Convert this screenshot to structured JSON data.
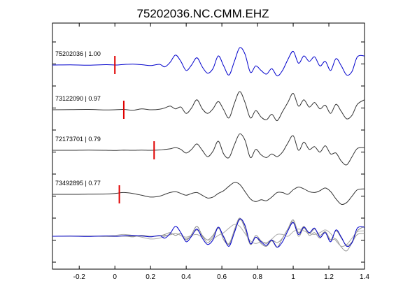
{
  "chart_data": {
    "type": "line",
    "title": "75202036.NC.CMM.EHZ",
    "xlabel": "",
    "ylabel": "",
    "xlim": [
      -0.35,
      1.4
    ],
    "x_ticks": [
      -0.2,
      0,
      0.2,
      0.4,
      0.6,
      0.8,
      1,
      1.2,
      1.4
    ],
    "x_tick_labels": [
      "-0.2",
      "0",
      "0.2",
      "0.4",
      "0.6",
      "0.8",
      "1",
      "1.2",
      "1.4"
    ],
    "grid": false,
    "series": [
      {
        "name": "75202036 | 1.00",
        "color": "#0000cc",
        "pick_time": 0.0,
        "x": [
          -0.35,
          -0.25,
          -0.15,
          -0.05,
          0.0,
          0.05,
          0.1,
          0.15,
          0.2,
          0.25,
          0.28,
          0.31,
          0.34,
          0.37,
          0.4,
          0.43,
          0.46,
          0.49,
          0.52,
          0.55,
          0.58,
          0.61,
          0.64,
          0.67,
          0.7,
          0.73,
          0.76,
          0.79,
          0.82,
          0.85,
          0.88,
          0.91,
          0.94,
          0.97,
          1.0,
          1.03,
          1.06,
          1.09,
          1.12,
          1.15,
          1.18,
          1.21,
          1.24,
          1.27,
          1.3,
          1.33,
          1.36,
          1.4
        ],
        "y": [
          0.0,
          0.01,
          -0.01,
          0.02,
          0.0,
          0.03,
          0.05,
          0.02,
          -0.03,
          0.04,
          -0.1,
          0.15,
          0.55,
          0.2,
          -0.3,
          0.0,
          0.4,
          -0.1,
          -0.45,
          -0.2,
          0.5,
          -0.05,
          -0.55,
          0.2,
          0.95,
          0.6,
          -0.4,
          -0.05,
          -0.3,
          -0.5,
          -0.2,
          -0.6,
          -0.3,
          0.3,
          0.75,
          0.1,
          0.5,
          0.2,
          0.45,
          -0.05,
          0.2,
          -0.3,
          0.35,
          -0.05,
          -0.55,
          -0.35,
          0.45,
          0.5
        ]
      },
      {
        "name": "73122090 | 0.97",
        "color": "#333333",
        "pick_time": 0.05,
        "x": [
          -0.35,
          -0.25,
          -0.15,
          -0.05,
          0.0,
          0.05,
          0.1,
          0.15,
          0.2,
          0.25,
          0.28,
          0.31,
          0.34,
          0.37,
          0.4,
          0.43,
          0.46,
          0.49,
          0.52,
          0.55,
          0.58,
          0.61,
          0.64,
          0.67,
          0.7,
          0.73,
          0.76,
          0.79,
          0.82,
          0.85,
          0.88,
          0.91,
          0.94,
          0.97,
          1.0,
          1.03,
          1.06,
          1.09,
          1.12,
          1.15,
          1.18,
          1.21,
          1.24,
          1.27,
          1.3,
          1.33,
          1.36,
          1.4
        ],
        "y": [
          0.0,
          0.01,
          0.02,
          -0.01,
          0.0,
          0.02,
          -0.03,
          0.05,
          0.0,
          0.03,
          0.1,
          0.2,
          0.05,
          0.15,
          -0.2,
          0.1,
          0.55,
          0.05,
          -0.2,
          0.05,
          0.45,
          0.0,
          -0.45,
          0.35,
          1.0,
          0.4,
          -0.45,
          -0.05,
          -0.4,
          -0.55,
          -0.25,
          -0.6,
          -0.1,
          0.4,
          0.9,
          0.2,
          0.55,
          0.15,
          0.4,
          0.05,
          0.25,
          -0.2,
          0.3,
          -0.1,
          -0.5,
          -0.3,
          0.3,
          0.55
        ]
      },
      {
        "name": "72173701 | 0.79",
        "color": "#333333",
        "pick_time": 0.22,
        "x": [
          -0.35,
          -0.25,
          -0.15,
          -0.05,
          0.0,
          0.05,
          0.1,
          0.15,
          0.2,
          0.25,
          0.28,
          0.31,
          0.34,
          0.37,
          0.4,
          0.43,
          0.46,
          0.49,
          0.52,
          0.55,
          0.58,
          0.61,
          0.64,
          0.67,
          0.7,
          0.73,
          0.76,
          0.79,
          0.82,
          0.85,
          0.88,
          0.91,
          0.94,
          0.97,
          1.0,
          1.03,
          1.06,
          1.09,
          1.12,
          1.15,
          1.18,
          1.21,
          1.24,
          1.27,
          1.3,
          1.33,
          1.36,
          1.4
        ],
        "y": [
          0.0,
          0.0,
          0.01,
          0.0,
          -0.01,
          0.01,
          0.0,
          0.01,
          0.0,
          0.02,
          0.05,
          0.08,
          0.15,
          0.05,
          -0.15,
          0.05,
          0.35,
          0.0,
          -0.35,
          -0.05,
          0.5,
          -0.2,
          -0.4,
          0.3,
          0.9,
          0.55,
          -0.4,
          0.05,
          -0.25,
          -0.4,
          -0.2,
          -0.35,
          -0.1,
          0.4,
          0.8,
          0.0,
          0.45,
          0.05,
          0.2,
          -0.1,
          0.25,
          -0.2,
          -0.15,
          -0.6,
          -0.8,
          -0.35,
          0.1,
          0.15
        ]
      },
      {
        "name": "73492895 | 0.77",
        "color": "#333333",
        "pick_time": 0.025,
        "x": [
          -0.35,
          -0.25,
          -0.15,
          -0.05,
          0.0,
          0.05,
          0.1,
          0.15,
          0.2,
          0.25,
          0.28,
          0.31,
          0.34,
          0.37,
          0.4,
          0.43,
          0.46,
          0.49,
          0.52,
          0.55,
          0.58,
          0.61,
          0.64,
          0.67,
          0.7,
          0.73,
          0.76,
          0.79,
          0.82,
          0.85,
          0.88,
          0.91,
          0.94,
          0.97,
          1.0,
          1.03,
          1.06,
          1.09,
          1.12,
          1.15,
          1.18,
          1.21,
          1.24,
          1.27,
          1.3,
          1.33,
          1.36,
          1.4
        ],
        "y": [
          0.0,
          0.0,
          0.01,
          0.02,
          0.05,
          0.1,
          0.05,
          -0.05,
          -0.15,
          -0.1,
          0.0,
          0.1,
          0.15,
          0.05,
          -0.05,
          0.05,
          0.1,
          -0.05,
          -0.2,
          -0.15,
          0.05,
          0.2,
          0.45,
          0.65,
          0.55,
          0.15,
          -0.25,
          -0.4,
          -0.3,
          -0.35,
          -0.15,
          0.1,
          0.1,
          0.0,
          0.25,
          0.4,
          0.3,
          0.15,
          0.1,
          0.2,
          0.35,
          0.15,
          -0.25,
          -0.55,
          -0.45,
          -0.1,
          0.25,
          0.3
        ]
      },
      {
        "name": "",
        "color": "#0000cc",
        "overlay": true,
        "x": [
          -0.35,
          -0.25,
          -0.15,
          -0.05,
          0.0,
          0.05,
          0.1,
          0.15,
          0.2,
          0.25,
          0.28,
          0.31,
          0.34,
          0.37,
          0.4,
          0.43,
          0.46,
          0.49,
          0.52,
          0.55,
          0.58,
          0.61,
          0.64,
          0.67,
          0.7,
          0.73,
          0.76,
          0.79,
          0.82,
          0.85,
          0.88,
          0.91,
          0.94,
          0.97,
          1.0,
          1.03,
          1.06,
          1.09,
          1.12,
          1.15,
          1.18,
          1.21,
          1.24,
          1.27,
          1.3,
          1.33,
          1.36,
          1.4
        ],
        "y": [
          0.0,
          0.01,
          -0.01,
          0.02,
          0.0,
          0.03,
          0.05,
          0.02,
          -0.03,
          0.04,
          -0.1,
          0.15,
          0.55,
          0.2,
          -0.3,
          0.0,
          0.4,
          -0.1,
          -0.45,
          -0.2,
          0.5,
          -0.05,
          -0.55,
          0.2,
          0.95,
          0.6,
          -0.4,
          -0.05,
          -0.3,
          -0.5,
          -0.2,
          -0.6,
          -0.3,
          0.3,
          0.75,
          0.1,
          0.5,
          0.2,
          0.45,
          -0.05,
          0.2,
          -0.3,
          0.35,
          -0.05,
          -0.55,
          -0.35,
          0.45,
          0.5
        ]
      },
      {
        "name": "",
        "color": "#888888",
        "overlay": true,
        "x": [
          -0.35,
          -0.25,
          -0.15,
          -0.05,
          0.0,
          0.05,
          0.1,
          0.15,
          0.2,
          0.25,
          0.28,
          0.31,
          0.34,
          0.37,
          0.4,
          0.43,
          0.46,
          0.49,
          0.52,
          0.55,
          0.58,
          0.61,
          0.64,
          0.67,
          0.7,
          0.73,
          0.76,
          0.79,
          0.82,
          0.85,
          0.88,
          0.91,
          0.94,
          0.97,
          1.0,
          1.03,
          1.06,
          1.09,
          1.12,
          1.15,
          1.18,
          1.21,
          1.24,
          1.27,
          1.3,
          1.33,
          1.36,
          1.4
        ],
        "y": [
          0.0,
          0.01,
          0.02,
          -0.01,
          0.0,
          0.02,
          -0.03,
          0.05,
          0.0,
          0.03,
          0.1,
          0.2,
          0.05,
          0.15,
          -0.2,
          0.1,
          0.55,
          0.05,
          -0.2,
          0.05,
          0.45,
          0.0,
          -0.45,
          0.35,
          1.0,
          0.4,
          -0.45,
          -0.05,
          -0.4,
          -0.55,
          -0.25,
          -0.6,
          -0.1,
          0.4,
          0.9,
          0.2,
          0.55,
          0.15,
          0.4,
          0.05,
          0.25,
          -0.2,
          0.3,
          -0.1,
          -0.5,
          -0.3,
          0.3,
          0.55
        ]
      },
      {
        "name": "",
        "color": "#999999",
        "overlay": true,
        "x": [
          -0.35,
          -0.25,
          -0.15,
          -0.05,
          0.0,
          0.05,
          0.1,
          0.15,
          0.2,
          0.25,
          0.28,
          0.31,
          0.34,
          0.37,
          0.4,
          0.43,
          0.46,
          0.49,
          0.52,
          0.55,
          0.58,
          0.61,
          0.64,
          0.67,
          0.7,
          0.73,
          0.76,
          0.79,
          0.82,
          0.85,
          0.88,
          0.91,
          0.94,
          0.97,
          1.0,
          1.03,
          1.06,
          1.09,
          1.12,
          1.15,
          1.18,
          1.21,
          1.24,
          1.27,
          1.3,
          1.33,
          1.36,
          1.4
        ],
        "y": [
          0.0,
          0.0,
          0.01,
          0.0,
          -0.01,
          0.01,
          0.0,
          0.01,
          0.0,
          0.02,
          0.05,
          0.08,
          0.15,
          0.05,
          -0.15,
          0.05,
          0.35,
          0.0,
          -0.35,
          -0.05,
          0.5,
          -0.2,
          -0.4,
          0.3,
          0.9,
          0.55,
          -0.4,
          0.05,
          -0.25,
          -0.4,
          -0.2,
          -0.35,
          -0.1,
          0.4,
          0.8,
          0.0,
          0.45,
          0.05,
          0.2,
          -0.1,
          0.25,
          -0.2,
          -0.15,
          -0.6,
          -0.8,
          -0.35,
          0.1,
          0.15
        ]
      },
      {
        "name": "",
        "color": "#aaaaaa",
        "overlay": true,
        "x": [
          -0.35,
          -0.25,
          -0.15,
          -0.05,
          0.0,
          0.05,
          0.1,
          0.15,
          0.2,
          0.25,
          0.28,
          0.31,
          0.34,
          0.37,
          0.4,
          0.43,
          0.46,
          0.49,
          0.52,
          0.55,
          0.58,
          0.61,
          0.64,
          0.67,
          0.7,
          0.73,
          0.76,
          0.79,
          0.82,
          0.85,
          0.88,
          0.91,
          0.94,
          0.97,
          1.0,
          1.03,
          1.06,
          1.09,
          1.12,
          1.15,
          1.18,
          1.21,
          1.24,
          1.27,
          1.3,
          1.33,
          1.36,
          1.4
        ],
        "y": [
          0.0,
          0.0,
          0.01,
          0.02,
          0.05,
          0.1,
          0.05,
          -0.05,
          -0.15,
          -0.1,
          0.0,
          0.1,
          0.15,
          0.05,
          -0.05,
          0.05,
          0.1,
          -0.05,
          -0.2,
          -0.15,
          0.05,
          0.2,
          0.45,
          0.65,
          0.55,
          0.15,
          -0.25,
          -0.4,
          -0.3,
          -0.35,
          -0.15,
          0.1,
          0.1,
          0.0,
          0.25,
          0.4,
          0.3,
          0.15,
          0.1,
          0.2,
          0.35,
          0.15,
          -0.25,
          -0.55,
          -0.45,
          -0.1,
          0.25,
          0.3
        ]
      }
    ]
  }
}
